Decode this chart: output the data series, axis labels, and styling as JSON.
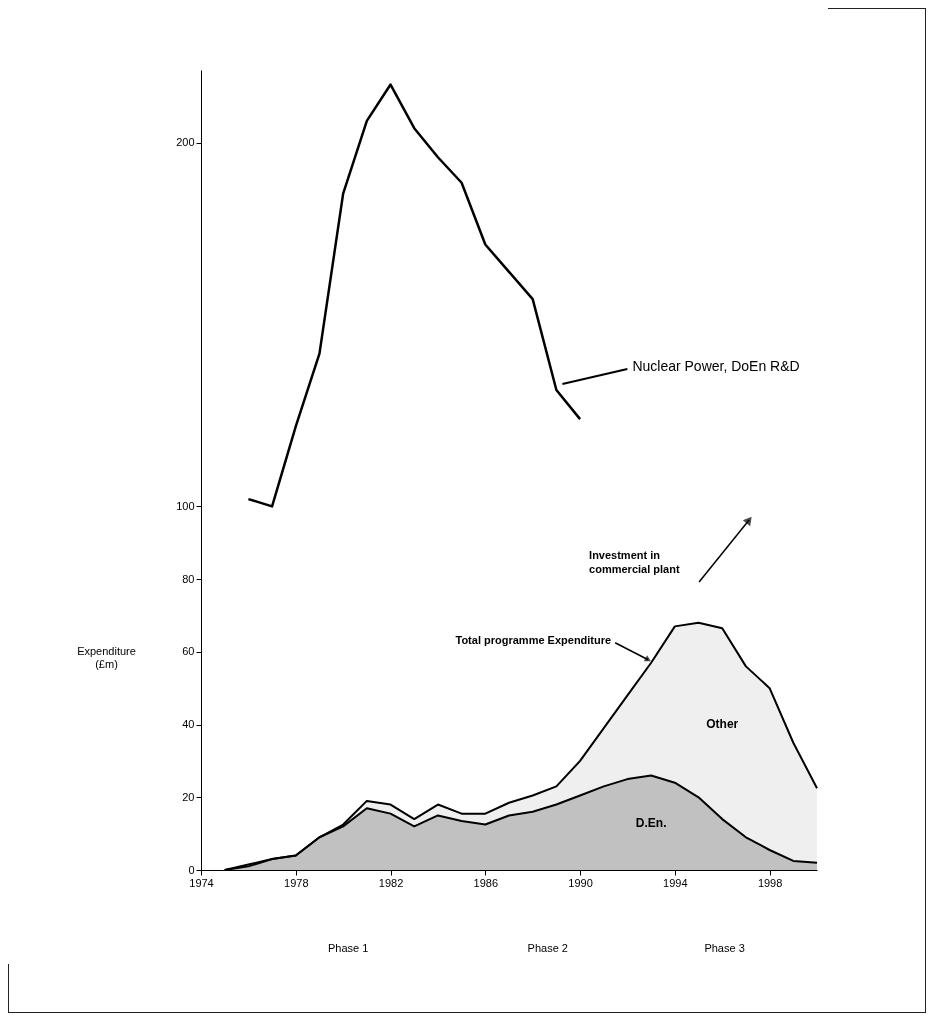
{
  "chart_data": {
    "type": "area",
    "stacked": true,
    "ylabel": "Expenditure (£m)",
    "x": [
      1975,
      1976,
      1977,
      1978,
      1979,
      1980,
      1981,
      1982,
      1983,
      1984,
      1985,
      1986,
      1987,
      1988,
      1989,
      1990,
      1991,
      1992,
      1993,
      1994,
      1995,
      1996,
      1997,
      1998,
      1999,
      2000
    ],
    "xlim": [
      1974,
      2000
    ],
    "xticks": [
      1974,
      1978,
      1982,
      1986,
      1990,
      1994,
      1998
    ],
    "ylim": [
      0,
      220
    ],
    "yticks": [
      0,
      20,
      40,
      60,
      80,
      100,
      200
    ],
    "series": [
      {
        "name": "D.En.",
        "color": "#a6a6a6",
        "values": [
          0,
          1,
          3,
          4,
          9,
          12,
          17,
          15.5,
          12,
          15,
          13.5,
          12.5,
          15,
          16,
          18,
          20.5,
          23,
          25,
          26,
          24,
          20,
          14,
          9,
          5.5,
          2.5,
          2
        ]
      },
      {
        "name": "Other",
        "color": "#e8e8e8",
        "values": [
          0,
          0.5,
          0,
          0,
          0,
          0.5,
          2,
          2.5,
          2,
          3,
          2,
          3,
          3.5,
          4.5,
          5,
          9.5,
          16,
          23,
          31,
          43,
          48,
          52.5,
          47,
          44.5,
          32.5,
          20.5
        ]
      },
      {
        "name": "Nuclear Power, DoEn R&D",
        "type": "line",
        "color": "#000000",
        "x": [
          1976,
          1977,
          1978,
          1979,
          1980,
          1981,
          1982,
          1983,
          1984,
          1985,
          1986,
          1988,
          1989,
          1990
        ],
        "values": [
          102,
          100,
          122,
          142,
          186,
          206,
          216,
          204,
          196,
          189,
          172,
          157,
          132,
          124
        ]
      }
    ],
    "annotations": [
      {
        "text": "Total programme Expenditure",
        "x": 1993,
        "y": 57
      },
      "Investment in commercial plant",
      "Phase 1",
      "Phase 2",
      "Phase 3"
    ]
  }
}
